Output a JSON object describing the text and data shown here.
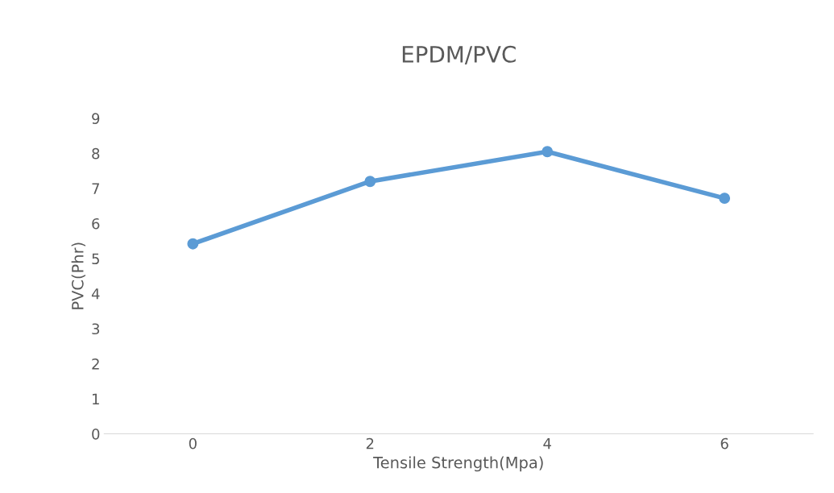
{
  "chart_data": {
    "type": "line",
    "title": "EPDM/PVC",
    "xlabel": "Tensile Strength(Mpa)",
    "ylabel": "PVC(Phr)",
    "categories": [
      "0",
      "2",
      "4",
      "6"
    ],
    "series": [
      {
        "color": "#5b9bd5",
        "values": [
          5.42,
          7.2,
          8.05,
          6.72
        ]
      }
    ],
    "ylim": [
      0,
      9
    ],
    "yticks": [
      0,
      1,
      2,
      3,
      4,
      5,
      6,
      7,
      8,
      9
    ],
    "grid": false,
    "legend": false,
    "marker": "circle",
    "line_style": "solid"
  }
}
